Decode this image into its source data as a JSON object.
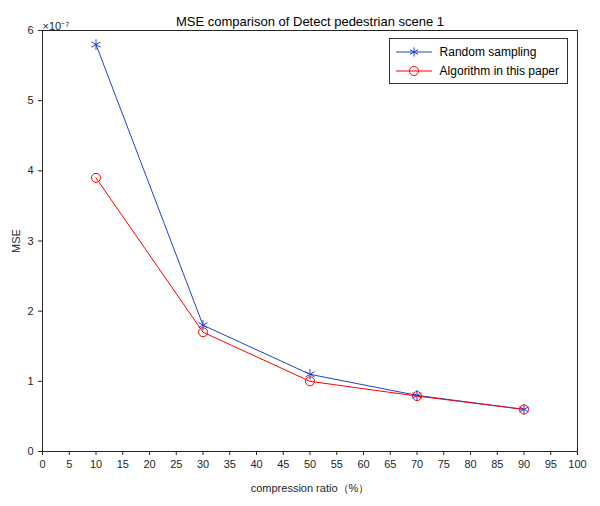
{
  "chart_data": {
    "type": "line",
    "title": "MSE comparison of Detect pedestrian scene 1",
    "x_label": "compression ratio（%）",
    "y_label": "MSE",
    "annotations": [
      "×10⁻⁷"
    ],
    "x": [
      10,
      30,
      50,
      70,
      90
    ],
    "series": [
      {
        "name": "Random sampling",
        "color": "#1f3fd0",
        "marker": "asterisk",
        "line_style": "solid",
        "values": [
          5.8,
          1.8,
          1.1,
          0.8,
          0.6
        ]
      },
      {
        "name": "Algorithm in this paper",
        "color": "#ff0000",
        "marker": "circle",
        "line_style": "solid",
        "values": [
          3.9,
          1.7,
          1.0,
          0.79,
          0.6
        ]
      }
    ],
    "xlim": [
      0,
      100
    ],
    "xticks": [
      0,
      5,
      10,
      15,
      20,
      25,
      30,
      35,
      40,
      45,
      50,
      55,
      60,
      65,
      70,
      75,
      80,
      85,
      90,
      95,
      100
    ],
    "ylim": [
      0,
      6
    ],
    "yticks": [
      0,
      1,
      2,
      3,
      4,
      5,
      6
    ],
    "grid": false,
    "legend": "top-right"
  }
}
